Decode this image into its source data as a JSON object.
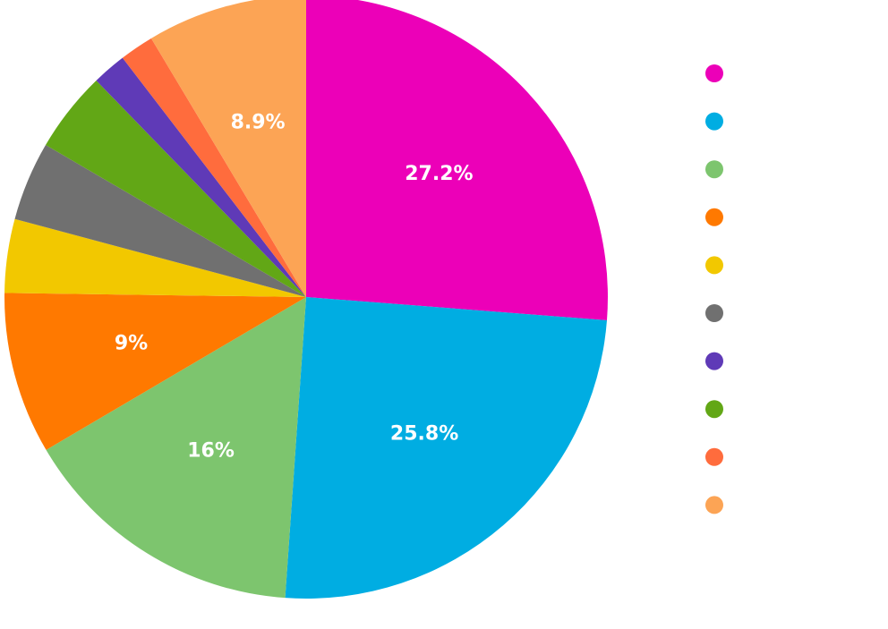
{
  "chart_data": {
    "type": "pie",
    "title": "",
    "legend_position": "right",
    "start_angle_deg": -90,
    "direction": "clockwise",
    "slices": [
      {
        "value": 27.2,
        "label": "27.2%",
        "color": "#EC00B8"
      },
      {
        "value": 25.8,
        "label": "25.8%",
        "color": "#00ADE2"
      },
      {
        "value": 16.0,
        "label": "16%",
        "color": "#7DC56E"
      },
      {
        "value": 9.0,
        "label": "9%",
        "color": "#FF7900"
      },
      {
        "value": 4.1,
        "label": "",
        "color": "#F2C800"
      },
      {
        "value": 4.4,
        "label": "",
        "color": "#707070"
      },
      {
        "value": 4.5,
        "label": "",
        "color": "#62A716"
      },
      {
        "value": 1.9,
        "label": "",
        "color": "#5F3AB7"
      },
      {
        "value": 1.9,
        "label": "",
        "color": "#FF6C3D"
      },
      {
        "value": 8.9,
        "label": "8.9%",
        "color": "#FCA455"
      }
    ],
    "legend_order": [
      0,
      1,
      2,
      3,
      4,
      5,
      7,
      6,
      8,
      9
    ]
  }
}
